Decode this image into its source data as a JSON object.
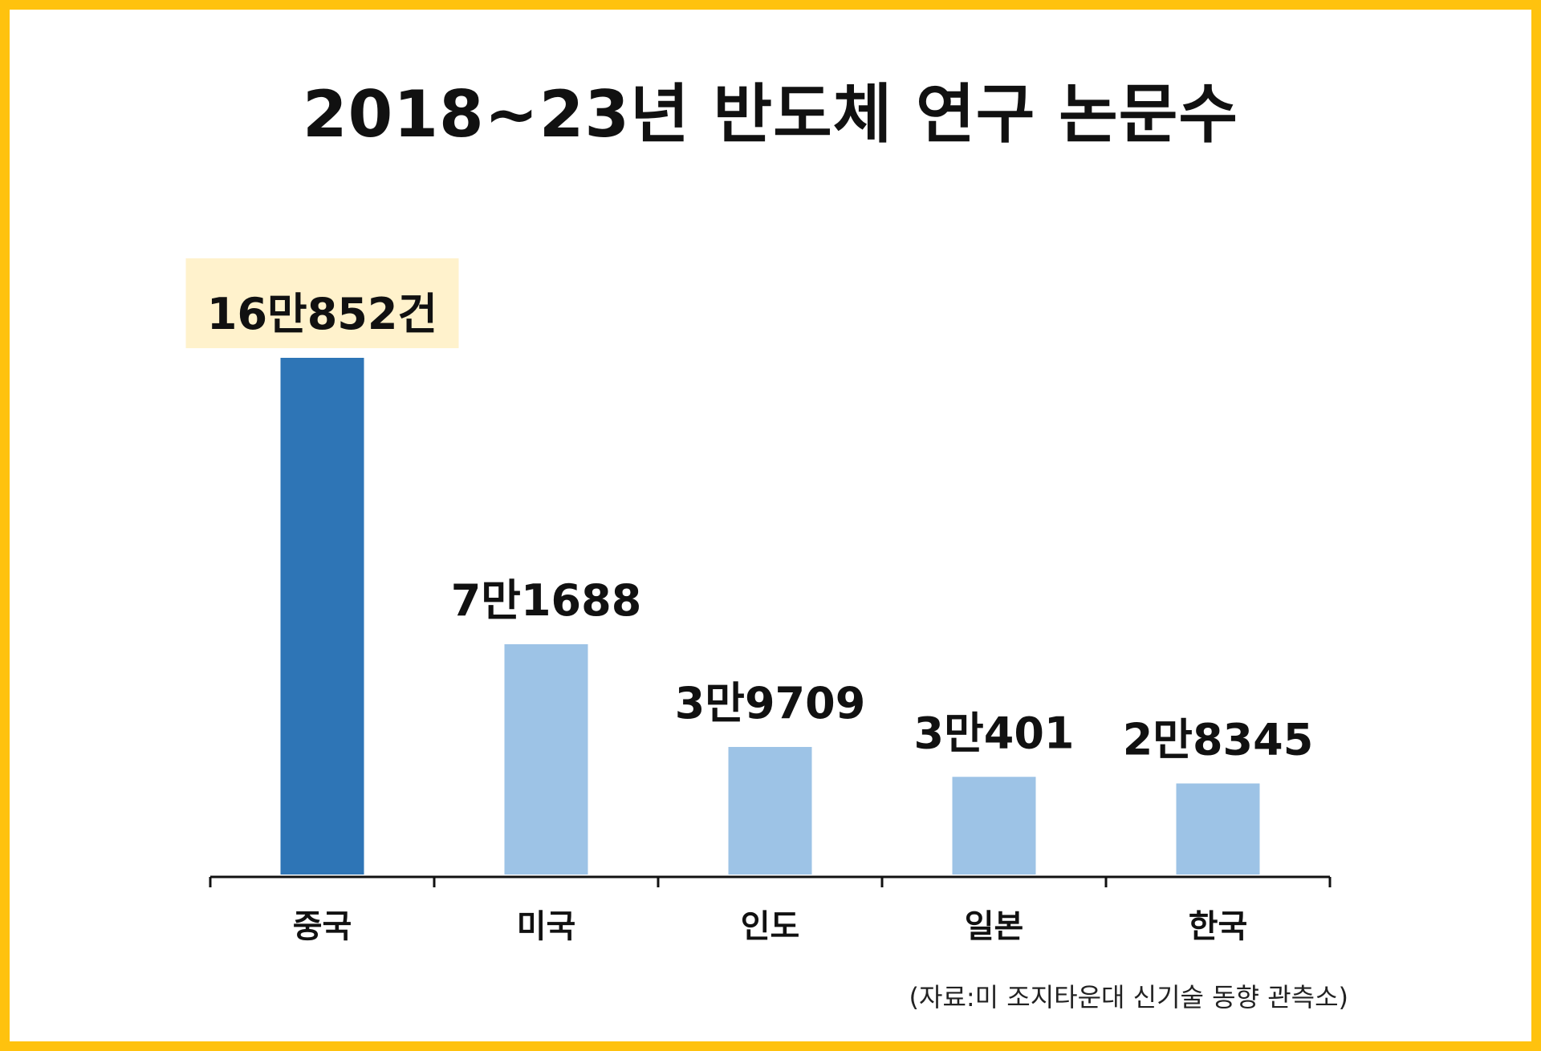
{
  "title": "2018~23년 반도체 연구 논문수",
  "source": "(자료:미 조지타운대 신기술 동향 관측소)",
  "colors": {
    "frame": "#FFC20E",
    "highlight_bar": "#2E75B6",
    "bar": "#9DC3E6",
    "highlight_label_bg": "#FFF2CC",
    "axis": "#111111"
  },
  "chart_data": {
    "type": "bar",
    "title": "2018~23년 반도체 연구 논문수",
    "categories": [
      "중국",
      "미국",
      "인도",
      "일본",
      "한국"
    ],
    "values": [
      160852,
      71688,
      39709,
      30401,
      28345
    ],
    "data_labels": [
      "16만852건",
      "7만1688",
      "3만9709",
      "3만401",
      "2만8345"
    ],
    "highlight_index": 0,
    "xlabel": "",
    "ylabel": "",
    "ylim": [
      0,
      160852
    ],
    "grid": false,
    "legend": "none"
  }
}
